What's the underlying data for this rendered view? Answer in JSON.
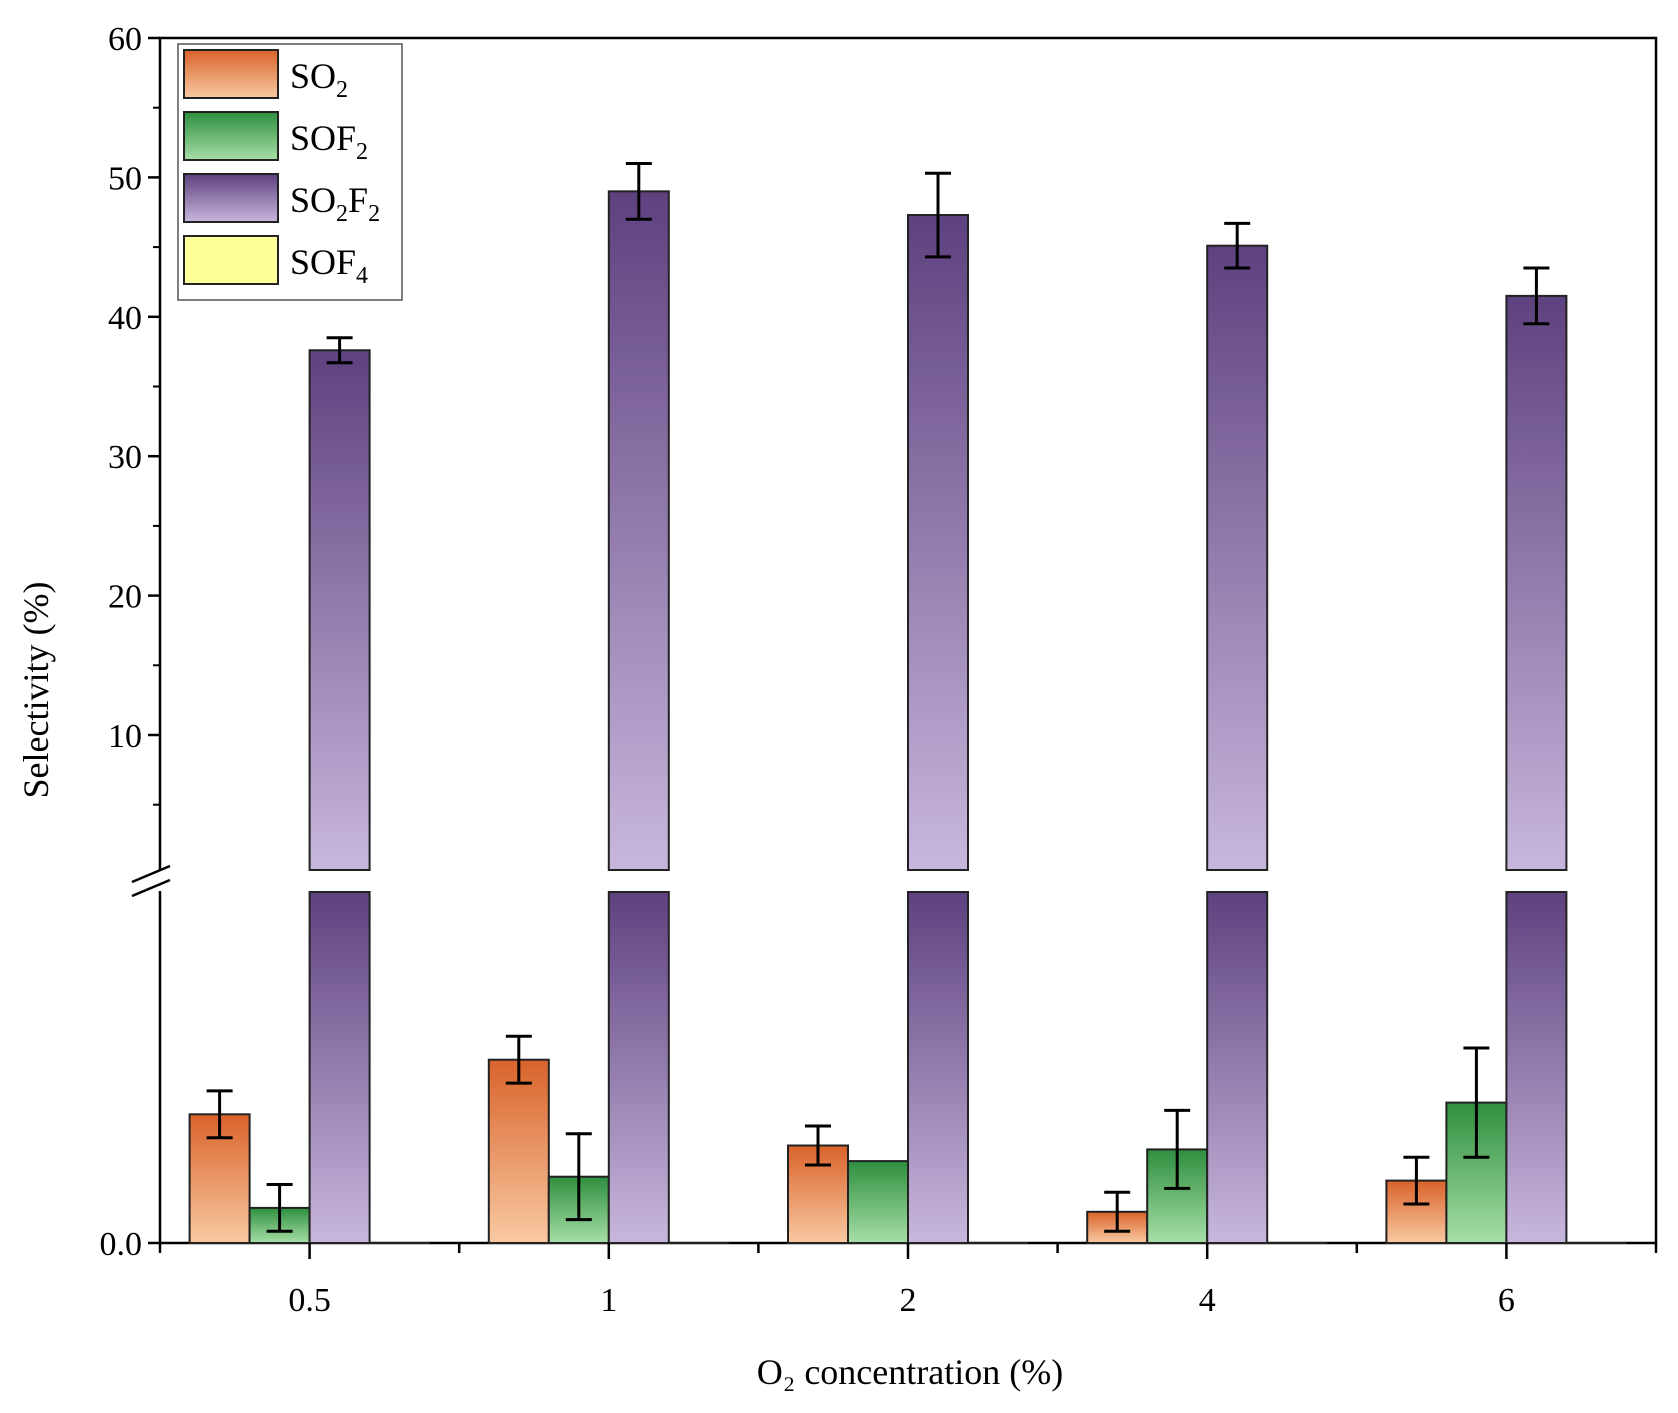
{
  "chart_data": {
    "type": "bar",
    "title": "",
    "xlabel": "O₂ concentration (%)",
    "ylabel": "Selectivity (%)",
    "categories": [
      "0.5",
      "1",
      "2",
      "4",
      "6"
    ],
    "y_broken_axis": {
      "lower_range": [
        0,
        0.9
      ],
      "upper_range": [
        0.9,
        60
      ],
      "break_between": true
    },
    "ylim": [
      0,
      60
    ],
    "yticks_upper": [
      "10",
      "20",
      "30",
      "40",
      "50",
      "60"
    ],
    "yticks_lower": [
      "0.0"
    ],
    "legend_position": "top-left",
    "series": [
      {
        "name": "SO₂",
        "label_main": "SO",
        "label_sub": "2",
        "label_tail": "",
        "label_tail_sub": "",
        "color_top": "#d9632b",
        "color_bottom": "#f9c9a2",
        "values": [
          0.33,
          0.47,
          0.25,
          0.08,
          0.16
        ],
        "errors": [
          0.06,
          0.06,
          0.05,
          0.05,
          0.06
        ]
      },
      {
        "name": "SOF₂",
        "label_main": "SOF",
        "label_sub": "2",
        "label_tail": "",
        "label_tail_sub": "",
        "color_top": "#2f8f3f",
        "color_bottom": "#a6dfa6",
        "values": [
          0.09,
          0.17,
          0.21,
          0.24,
          0.36
        ],
        "errors": [
          0.06,
          0.11,
          0.0,
          0.1,
          0.14
        ]
      },
      {
        "name": "SO₂F₂",
        "label_main": "SO",
        "label_sub": "2",
        "label_tail": "F",
        "label_tail_sub": "2",
        "color_top": "#5e417f",
        "color_bottom": "#c8b7dc",
        "values": [
          37.6,
          49.0,
          47.3,
          45.1,
          41.5
        ],
        "errors": [
          0.9,
          2.0,
          3.0,
          1.6,
          2.0
        ]
      },
      {
        "name": "SOF₄",
        "label_main": "SOF",
        "label_sub": "4",
        "label_tail": "",
        "label_tail_sub": "",
        "color_top": "#ffff99",
        "color_bottom": "#ffff99",
        "values": [
          0.0,
          0.0,
          0.0,
          0.0,
          0.0
        ],
        "errors": [
          0,
          0,
          0,
          0,
          0
        ]
      }
    ]
  }
}
